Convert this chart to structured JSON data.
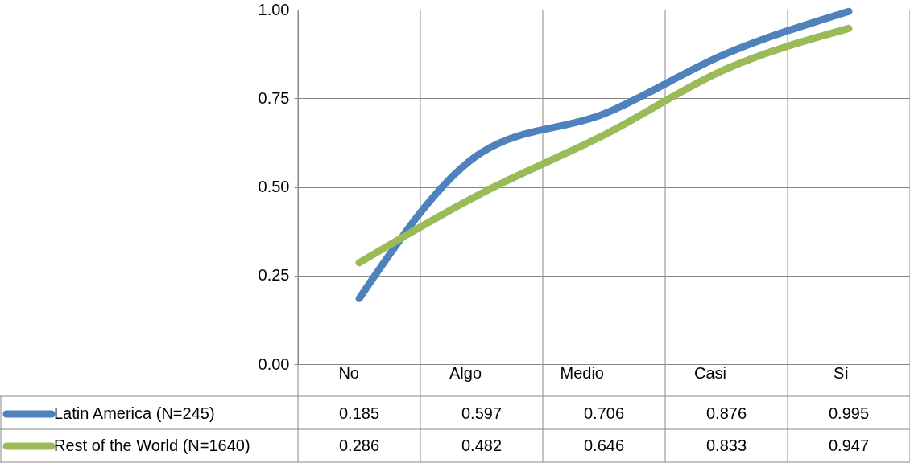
{
  "chart_data": {
    "type": "line",
    "categories": [
      "No",
      "Algo",
      "Medio",
      "Casi",
      "Sí"
    ],
    "series": [
      {
        "name": "Latin America (N=245)",
        "color": "#4f81bd",
        "values": [
          0.185,
          0.597,
          0.706,
          0.876,
          0.995
        ]
      },
      {
        "name": "Rest of the World (N=1640)",
        "color": "#9bbb59",
        "values": [
          0.286,
          0.482,
          0.646,
          0.833,
          0.947
        ]
      }
    ],
    "ylim": [
      0,
      1
    ],
    "yticks": [
      {
        "value": 0,
        "label": "0.00"
      },
      {
        "value": 0.25,
        "label": "0.25"
      },
      {
        "value": 0.5,
        "label": "0.50"
      },
      {
        "value": 0.75,
        "label": "0.75"
      },
      {
        "value": 1,
        "label": "1.00"
      }
    ],
    "grid": true,
    "data_labels": true,
    "legend": "bottom",
    "marker": "none",
    "line_style": "solid"
  }
}
